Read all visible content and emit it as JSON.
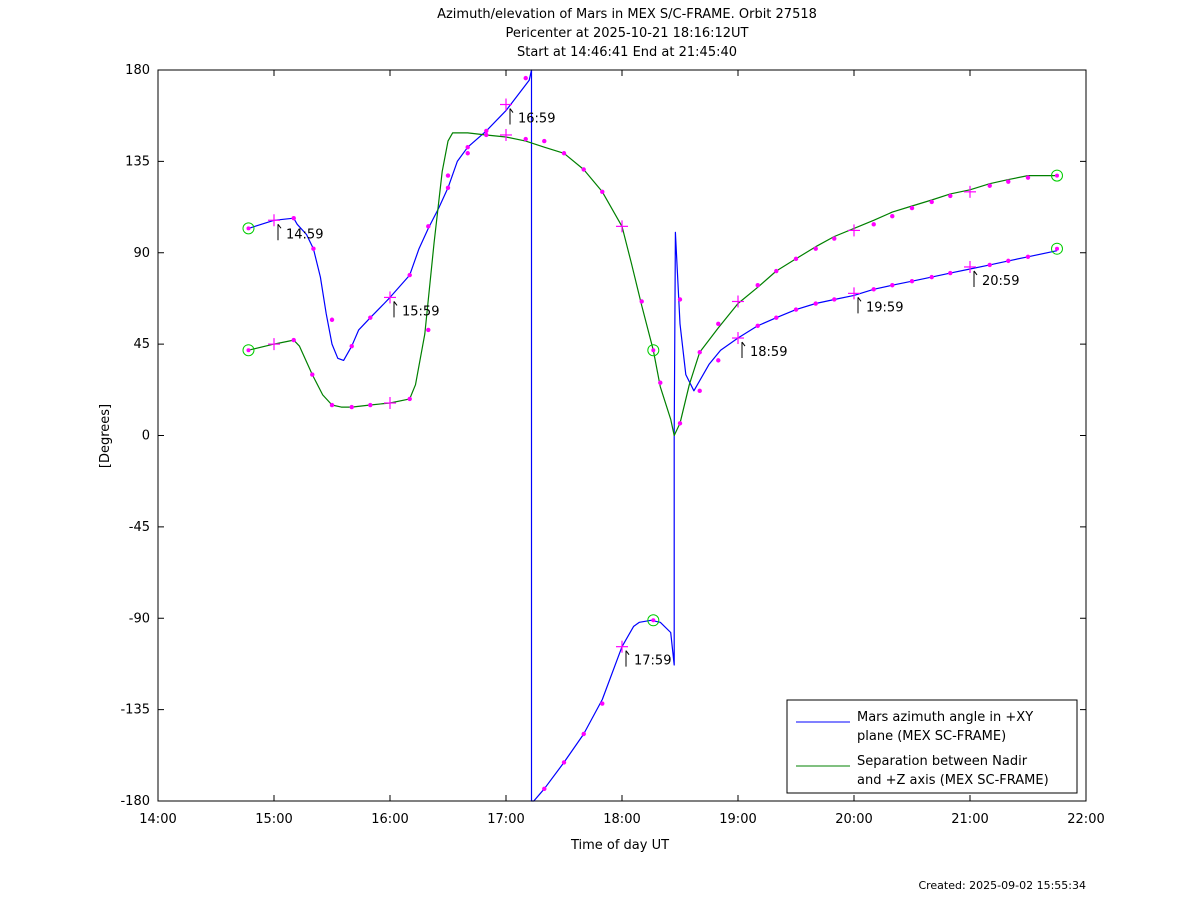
{
  "chart_data": {
    "type": "line",
    "title_lines": [
      "Azimuth/elevation of Mars in MEX S/C-FRAME.  Orbit 27518",
      "Pericenter at 2025-10-21 18:16:12UT",
      "Start at 14:46:41 End at 21:45:40"
    ],
    "xlabel": "Time of day UT",
    "ylabel": "[Degrees]",
    "xlim": [
      14.0,
      22.0
    ],
    "ylim": [
      -180,
      180
    ],
    "x_ticks": [
      {
        "v": 14,
        "label": "14:00"
      },
      {
        "v": 15,
        "label": "15:00"
      },
      {
        "v": 16,
        "label": "16:00"
      },
      {
        "v": 17,
        "label": "17:00"
      },
      {
        "v": 18,
        "label": "18:00"
      },
      {
        "v": 19,
        "label": "19:00"
      },
      {
        "v": 20,
        "label": "20:00"
      },
      {
        "v": 21,
        "label": "21:00"
      },
      {
        "v": 22,
        "label": "22:00"
      }
    ],
    "y_ticks": [
      {
        "v": 180,
        "label": "180"
      },
      {
        "v": 135,
        "label": "135"
      },
      {
        "v": 90,
        "label": "90"
      },
      {
        "v": 45,
        "label": "45"
      },
      {
        "v": 0,
        "label": "0"
      },
      {
        "v": -45,
        "label": "-45"
      },
      {
        "v": -90,
        "label": "-90"
      },
      {
        "v": -135,
        "label": "-135"
      },
      {
        "v": -180,
        "label": "-180"
      }
    ],
    "legend_position": "bottom-right",
    "series": [
      {
        "name_lines": [
          "Mars azimuth angle in +XY",
          "plane (MEX SC-FRAME)"
        ],
        "color": "#0000ff",
        "x": [
          14.78,
          15.0,
          15.17,
          15.2,
          15.28,
          15.34,
          15.4,
          15.45,
          15.5,
          15.55,
          15.6,
          15.67,
          15.73,
          15.83,
          15.95,
          16.0,
          16.17,
          16.25,
          16.33,
          16.42,
          16.5,
          16.58,
          16.67,
          16.83,
          17.0,
          17.2,
          17.22,
          17.22,
          17.24,
          17.33,
          17.5,
          17.67,
          17.83,
          18.0,
          18.1,
          18.15,
          18.25,
          18.33,
          18.42,
          18.45,
          18.45,
          18.46,
          18.5,
          18.55,
          18.62,
          18.65,
          18.75,
          18.85,
          19.0,
          19.17,
          19.33,
          19.5,
          19.67,
          19.83,
          20.0,
          20.17,
          20.33,
          20.5,
          20.67,
          20.83,
          21.0,
          21.17,
          21.33,
          21.5,
          21.75
        ],
        "y": [
          102,
          106,
          107,
          104,
          99,
          92,
          78,
          60,
          45,
          38,
          37,
          44,
          52,
          58,
          65,
          68,
          79,
          92,
          102,
          112,
          122,
          135,
          142,
          150,
          160,
          175,
          180,
          -180,
          -180,
          -174,
          -161,
          -147,
          -130,
          -104,
          -94,
          -92,
          -91,
          -92,
          -97,
          -113,
          0,
          100,
          55,
          30,
          22,
          25,
          35,
          42,
          48,
          54,
          58,
          62,
          65,
          67,
          69,
          72,
          74,
          76,
          78,
          80,
          82,
          84,
          86,
          88,
          91
        ],
        "markers": [
          [
            14.78,
            102,
            "circle"
          ],
          [
            15.0,
            106,
            "plus"
          ],
          [
            15.17,
            107,
            "dot"
          ],
          [
            15.34,
            92,
            "dot"
          ],
          [
            15.5,
            57,
            "dot"
          ],
          [
            15.67,
            44,
            "dot"
          ],
          [
            15.83,
            58,
            "dot"
          ],
          [
            16.0,
            68,
            "plus"
          ],
          [
            16.17,
            79,
            "dot"
          ],
          [
            16.33,
            103,
            "dot"
          ],
          [
            16.5,
            122,
            "dot"
          ],
          [
            16.67,
            139,
            "dot"
          ],
          [
            16.83,
            150,
            "dot"
          ],
          [
            17.0,
            163,
            "plus"
          ],
          [
            17.17,
            176,
            "dot"
          ],
          [
            17.33,
            -174,
            "dot"
          ],
          [
            17.5,
            -161,
            "dot"
          ],
          [
            17.67,
            -147,
            "dot"
          ],
          [
            17.83,
            -132,
            "dot"
          ],
          [
            18.0,
            -104,
            "plus"
          ],
          [
            18.27,
            -91,
            "circle"
          ],
          [
            18.5,
            67,
            "dot"
          ],
          [
            18.67,
            22,
            "dot"
          ],
          [
            18.83,
            37,
            "dot"
          ],
          [
            19.0,
            48,
            "plus"
          ],
          [
            19.17,
            54,
            "dot"
          ],
          [
            19.33,
            58,
            "dot"
          ],
          [
            19.5,
            62,
            "dot"
          ],
          [
            19.67,
            65,
            "dot"
          ],
          [
            19.83,
            67,
            "dot"
          ],
          [
            20.0,
            70,
            "plus"
          ],
          [
            20.17,
            72,
            "dot"
          ],
          [
            20.33,
            74,
            "dot"
          ],
          [
            20.5,
            76,
            "dot"
          ],
          [
            20.67,
            78,
            "dot"
          ],
          [
            20.83,
            80,
            "dot"
          ],
          [
            21.0,
            83,
            "plus"
          ],
          [
            21.17,
            84,
            "dot"
          ],
          [
            21.33,
            86,
            "dot"
          ],
          [
            21.5,
            88,
            "dot"
          ],
          [
            21.75,
            92,
            "circle"
          ]
        ]
      },
      {
        "name_lines": [
          "Separation between Nadir",
          "and +Z axis (MEX SC-FRAME)"
        ],
        "color": "#008000",
        "x": [
          14.78,
          15.0,
          15.17,
          15.22,
          15.33,
          15.42,
          15.5,
          15.58,
          15.67,
          15.83,
          16.0,
          16.17,
          16.22,
          16.3,
          16.38,
          16.45,
          16.5,
          16.54,
          16.58,
          16.67,
          16.83,
          17.0,
          17.17,
          17.33,
          17.5,
          17.67,
          17.83,
          18.0,
          18.08,
          18.17,
          18.27,
          18.33,
          18.42,
          18.45,
          18.5,
          18.58,
          18.67,
          18.83,
          19.0,
          19.17,
          19.33,
          19.5,
          19.67,
          19.83,
          20.0,
          20.17,
          20.33,
          20.5,
          20.67,
          20.83,
          21.0,
          21.17,
          21.33,
          21.5,
          21.75
        ],
        "y": [
          42,
          45,
          47,
          44,
          30,
          20,
          15,
          14,
          14,
          15,
          16,
          18,
          25,
          50,
          95,
          130,
          145,
          149,
          149,
          149,
          148,
          147,
          145,
          142,
          139,
          131,
          120,
          103,
          85,
          64,
          42,
          24,
          8,
          0,
          6,
          25,
          41,
          53,
          65,
          73,
          81,
          87,
          93,
          98,
          102,
          106,
          110,
          113,
          116,
          119,
          121,
          124,
          126,
          128,
          128
        ],
        "markers": [
          [
            14.78,
            42,
            "circle"
          ],
          [
            15.0,
            45,
            "plus"
          ],
          [
            15.17,
            47,
            "dot"
          ],
          [
            15.33,
            30,
            "dot"
          ],
          [
            15.5,
            15,
            "dot"
          ],
          [
            15.67,
            14,
            "dot"
          ],
          [
            15.83,
            15,
            "dot"
          ],
          [
            16.0,
            16,
            "plus"
          ],
          [
            16.17,
            18,
            "dot"
          ],
          [
            16.33,
            52,
            "dot"
          ],
          [
            16.5,
            128,
            "dot"
          ],
          [
            16.67,
            142,
            "dot"
          ],
          [
            16.83,
            148,
            "dot"
          ],
          [
            17.0,
            148,
            "plus"
          ],
          [
            17.17,
            146,
            "dot"
          ],
          [
            17.33,
            145,
            "dot"
          ],
          [
            17.5,
            139,
            "dot"
          ],
          [
            17.67,
            131,
            "dot"
          ],
          [
            17.83,
            120,
            "dot"
          ],
          [
            18.0,
            103,
            "plus"
          ],
          [
            18.17,
            66,
            "dot"
          ],
          [
            18.27,
            42,
            "circle"
          ],
          [
            18.33,
            26,
            "dot"
          ],
          [
            18.5,
            6,
            "dot"
          ],
          [
            18.67,
            41,
            "dot"
          ],
          [
            18.83,
            55,
            "dot"
          ],
          [
            19.0,
            66,
            "plus"
          ],
          [
            19.17,
            74,
            "dot"
          ],
          [
            19.33,
            81,
            "dot"
          ],
          [
            19.5,
            87,
            "dot"
          ],
          [
            19.67,
            92,
            "dot"
          ],
          [
            19.83,
            97,
            "dot"
          ],
          [
            20.0,
            101,
            "plus"
          ],
          [
            20.17,
            104,
            "dot"
          ],
          [
            20.33,
            108,
            "dot"
          ],
          [
            20.5,
            112,
            "dot"
          ],
          [
            20.67,
            115,
            "dot"
          ],
          [
            20.83,
            118,
            "dot"
          ],
          [
            21.0,
            120,
            "plus"
          ],
          [
            21.17,
            123,
            "dot"
          ],
          [
            21.33,
            125,
            "dot"
          ],
          [
            21.5,
            127,
            "dot"
          ],
          [
            21.75,
            128,
            "circle"
          ]
        ]
      }
    ],
    "annotations": [
      {
        "x": 15.0,
        "y": 106,
        "text": "14:59"
      },
      {
        "x": 16.0,
        "y": 68,
        "text": "15:59"
      },
      {
        "x": 17.0,
        "y": 163,
        "text": "16:59"
      },
      {
        "x": 18.0,
        "y": -104,
        "text": "17:59"
      },
      {
        "x": 19.0,
        "y": 48,
        "text": "18:59"
      },
      {
        "x": 20.0,
        "y": 70,
        "text": "19:59"
      },
      {
        "x": 21.0,
        "y": 83,
        "text": "20:59"
      }
    ],
    "footer": "Created: 2025-09-02 15:55:34"
  }
}
